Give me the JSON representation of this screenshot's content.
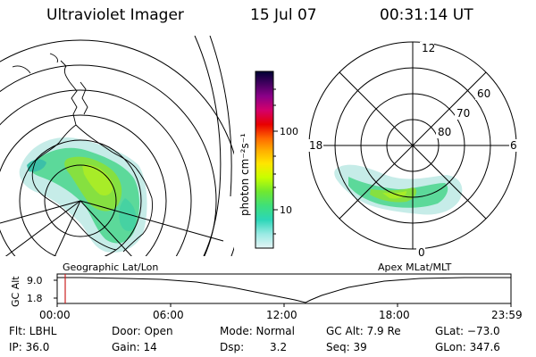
{
  "header": {
    "instrument": "Ultraviolet Imager",
    "date": "15 Jul 07",
    "time": "00:31:14 UT"
  },
  "left_map": {
    "label": "Geographic Lat/Lon"
  },
  "right_map": {
    "label": "Apex MLat/MLT",
    "mlt_labels": [
      "12",
      "18",
      "6",
      "0"
    ],
    "mlat_labels": [
      "60",
      "70",
      "80"
    ]
  },
  "colorbar": {
    "unit_label": "photon cm⁻²s⁻¹",
    "ticks": [
      "100",
      "10"
    ],
    "scale": "log",
    "colors": [
      "#000033",
      "#2a0050",
      "#55007a",
      "#9a0088",
      "#c8005a",
      "#e60000",
      "#ff6a00",
      "#ffb000",
      "#ffe500",
      "#d8ff00",
      "#96f000",
      "#3ee07a",
      "#2cd6b8",
      "#8de8e0",
      "#d8f0f0"
    ]
  },
  "altitude_plot": {
    "ylabel": "GC Alt",
    "yticks": [
      "9.0",
      "1.8"
    ],
    "xticks": [
      "00:00",
      "06:00",
      "12:00",
      "18:00",
      "23:59"
    ]
  },
  "footer": {
    "row1": {
      "filter": "Flt: LBHL",
      "door": "Door: Open",
      "mode": "Mode: Normal",
      "gc_alt": "GC Alt: 7.9 Re",
      "glat": "GLat: −73.0"
    },
    "row2": {
      "ip": "IP: 36.0",
      "gain": "Gain: 14",
      "dsp_label": "Dsp:",
      "dsp_value": "3.2",
      "seq": "Seq: 39",
      "glon": "GLon: 347.6"
    }
  }
}
